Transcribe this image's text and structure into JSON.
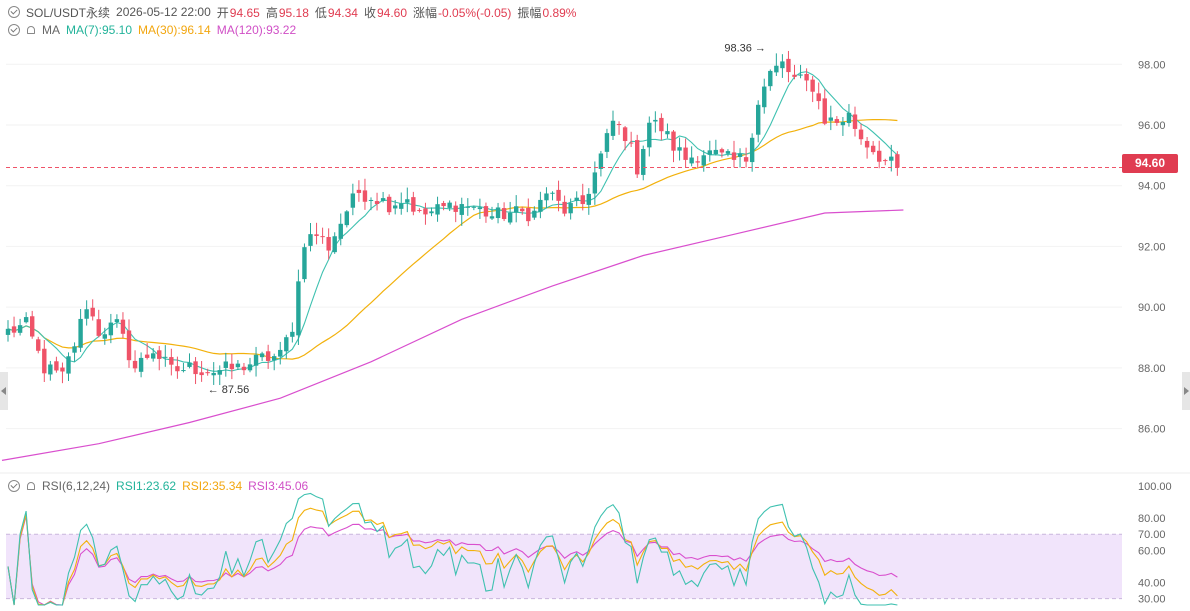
{
  "header": {
    "symbol": "SOL/USDT永续",
    "datetime": "2026-05-12 22:00",
    "open_label": "开",
    "open": "94.65",
    "high_label": "高",
    "high": "95.18",
    "low_label": "低",
    "low": "94.34",
    "close_label": "收",
    "close": "94.60",
    "change_label": "涨幅",
    "change": "-0.05%(-0.05)",
    "amplitude_label": "振幅",
    "amplitude": "0.89%"
  },
  "ma_legend": {
    "label": "MA",
    "ma7": "MA(7):95.10",
    "ma30": "MA(30):96.14",
    "ma120": "MA(120):93.22"
  },
  "rsi_legend": {
    "label": "RSI(6,12,24)",
    "rsi1": "RSI1:23.62",
    "rsi2": "RSI2:35.34",
    "rsi3": "RSI3:45.06"
  },
  "current_price_tag": "94.60",
  "colors": {
    "up": "#26a69a",
    "down": "#ef5368",
    "ma7": "#3fc1b0",
    "ma30": "#f2b10c",
    "ma120": "#d94fce",
    "rsi1": "#3fc1b0",
    "rsi2": "#f2b10c",
    "rsi3": "#d94fce",
    "rsi_band": "#f1e4fb"
  },
  "icons": {
    "collapse": "chevron-circle-icon",
    "alert": "bell-icon"
  },
  "chart_data": [
    {
      "type": "candlestick",
      "title": "SOL/USDT永续",
      "ylim": [
        84.8,
        98.8
      ],
      "y_ticks": [
        "98.00",
        "96.00",
        "94.00",
        "92.00",
        "90.00",
        "88.00",
        "86.00"
      ],
      "current_price": 94.6,
      "annotations": [
        {
          "text": "98.36",
          "value": 98.36,
          "candle_index": 127
        },
        {
          "text": "87.56",
          "value": 87.56,
          "candle_index": 34
        }
      ],
      "ma_series": [
        {
          "name": "MA(7)",
          "key": "ma7",
          "period": 7
        },
        {
          "name": "MA(30)",
          "key": "ma30",
          "period": 30
        },
        {
          "name": "MA(120)",
          "key": "ma120",
          "points": [
            [
              -1,
              84.95
            ],
            [
              15,
              85.5
            ],
            [
              30,
              86.2
            ],
            [
              45,
              87.0
            ],
            [
              60,
              88.2
            ],
            [
              75,
              89.6
            ],
            [
              90,
              90.7
            ],
            [
              105,
              91.7
            ],
            [
              120,
              92.4
            ],
            [
              135,
              93.1
            ],
            [
              148,
              93.2
            ]
          ]
        }
      ],
      "anchors": [
        [
          0,
          89.2
        ],
        [
          3,
          89.4
        ],
        [
          6,
          88.0
        ],
        [
          9,
          87.7
        ],
        [
          11,
          88.8
        ],
        [
          13,
          90.1
        ],
        [
          15,
          89.2
        ],
        [
          18,
          89.4
        ],
        [
          21,
          88.0
        ],
        [
          24,
          88.6
        ],
        [
          27,
          87.9
        ],
        [
          30,
          88.0
        ],
        [
          34,
          87.9
        ],
        [
          38,
          88.0
        ],
        [
          42,
          88.3
        ],
        [
          45,
          88.4
        ],
        [
          47,
          89.4
        ],
        [
          49,
          92.2
        ],
        [
          51,
          92.4
        ],
        [
          53,
          92.0
        ],
        [
          56,
          93.2
        ],
        [
          58,
          93.8
        ],
        [
          61,
          93.6
        ],
        [
          63,
          93.4
        ],
        [
          66,
          93.6
        ],
        [
          68,
          93.0
        ],
        [
          71,
          93.2
        ],
        [
          74,
          93.4
        ],
        [
          77,
          93.3
        ],
        [
          80,
          93.0
        ],
        [
          83,
          93.1
        ],
        [
          87,
          93.1
        ],
        [
          89,
          93.8
        ],
        [
          92,
          93.2
        ],
        [
          95,
          93.4
        ],
        [
          97,
          94.4
        ],
        [
          100,
          96.1
        ],
        [
          102,
          95.7
        ],
        [
          104,
          94.6
        ],
        [
          106,
          96.1
        ],
        [
          108,
          95.9
        ],
        [
          110,
          95.3
        ],
        [
          112,
          94.9
        ],
        [
          115,
          95.1
        ],
        [
          117,
          95.0
        ],
        [
          120,
          94.8
        ],
        [
          122,
          94.9
        ],
        [
          124,
          96.8
        ],
        [
          126,
          97.7
        ],
        [
          128,
          98.0
        ],
        [
          130,
          97.5
        ],
        [
          133,
          97.3
        ],
        [
          135,
          96.2
        ],
        [
          137,
          96.1
        ],
        [
          139,
          96.3
        ],
        [
          141,
          95.6
        ],
        [
          143,
          95.2
        ],
        [
          145,
          94.8
        ],
        [
          147,
          94.6
        ]
      ]
    },
    {
      "type": "line",
      "title": "RSI(6,12,24)",
      "ylim": [
        26,
        100
      ],
      "y_ticks": [
        "100.00",
        "80.00",
        "70.00",
        "60.00",
        "40.00",
        "30.00"
      ],
      "band": [
        30,
        70
      ],
      "series": [
        {
          "name": "RSI1",
          "key": "rsi1",
          "period": 6
        },
        {
          "name": "RSI2",
          "key": "rsi2",
          "period": 12
        },
        {
          "name": "RSI3",
          "key": "rsi3",
          "period": 24
        }
      ]
    }
  ]
}
